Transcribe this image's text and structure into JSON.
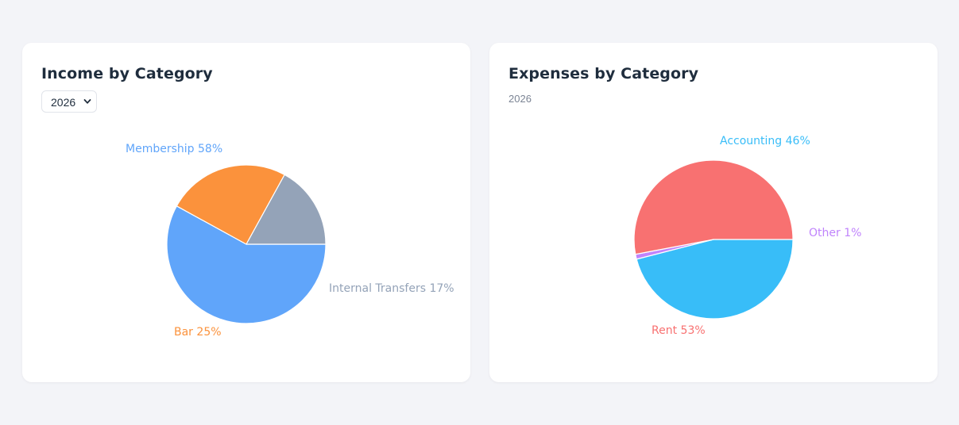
{
  "income": {
    "title": "Income by Category",
    "year_select": {
      "selected": "2026"
    },
    "chart_data": {
      "type": "pie",
      "title": "Income by Category",
      "slices": [
        {
          "label": "Membership",
          "value": 58,
          "color": "#60a5fa"
        },
        {
          "label": "Bar",
          "value": 25,
          "color": "#fb923c"
        },
        {
          "label": "Internal Transfers",
          "value": 17,
          "color": "#94a3b8"
        }
      ]
    }
  },
  "expenses": {
    "title": "Expenses by Category",
    "year": "2026",
    "chart_data": {
      "type": "pie",
      "title": "Expenses by Category",
      "slices": [
        {
          "label": "Accounting",
          "value": 46,
          "color": "#38bdf8"
        },
        {
          "label": "Other",
          "value": 1,
          "color": "#c084fc"
        },
        {
          "label": "Rent",
          "value": 53,
          "color": "#f87171"
        }
      ]
    }
  }
}
